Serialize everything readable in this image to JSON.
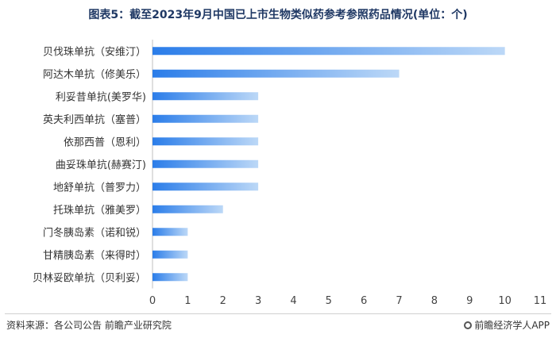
{
  "title": "图表5：截至2023年9月中国已上市生物类似药参考参照药品情况(单位：个)",
  "footer": {
    "source": "资料来源：各公司公告 前瞻产业研究院",
    "brand": "前瞻经济学人APP"
  },
  "colors": {
    "bar_start": "#2b7de9",
    "bar_end": "#bcd8f7",
    "axis": "#bfbfbf"
  },
  "chart_data": {
    "type": "bar",
    "orientation": "horizontal",
    "categories": [
      "贝伐珠单抗（安维汀）",
      "阿达木单抗（修美乐）",
      "利妥昔单抗(美罗华)",
      "英夫利西单抗（塞普）",
      "依那西普（恩利）",
      "曲妥珠单抗(赫赛汀)",
      "地舒单抗（普罗力）",
      "托珠单抗（雅美罗）",
      "门冬胰岛素（诺和锐）",
      "甘精胰岛素（来得时）",
      "贝林妥欧单抗（贝利妥）"
    ],
    "values": [
      10,
      7,
      3,
      3,
      3,
      3,
      3,
      2,
      1,
      1,
      1
    ],
    "xlim": [
      0,
      11
    ],
    "xticks": [
      "0",
      "1",
      "2",
      "3",
      "4",
      "5",
      "6",
      "7",
      "8",
      "9",
      "10",
      "11"
    ],
    "grid": false,
    "legend": "none"
  }
}
